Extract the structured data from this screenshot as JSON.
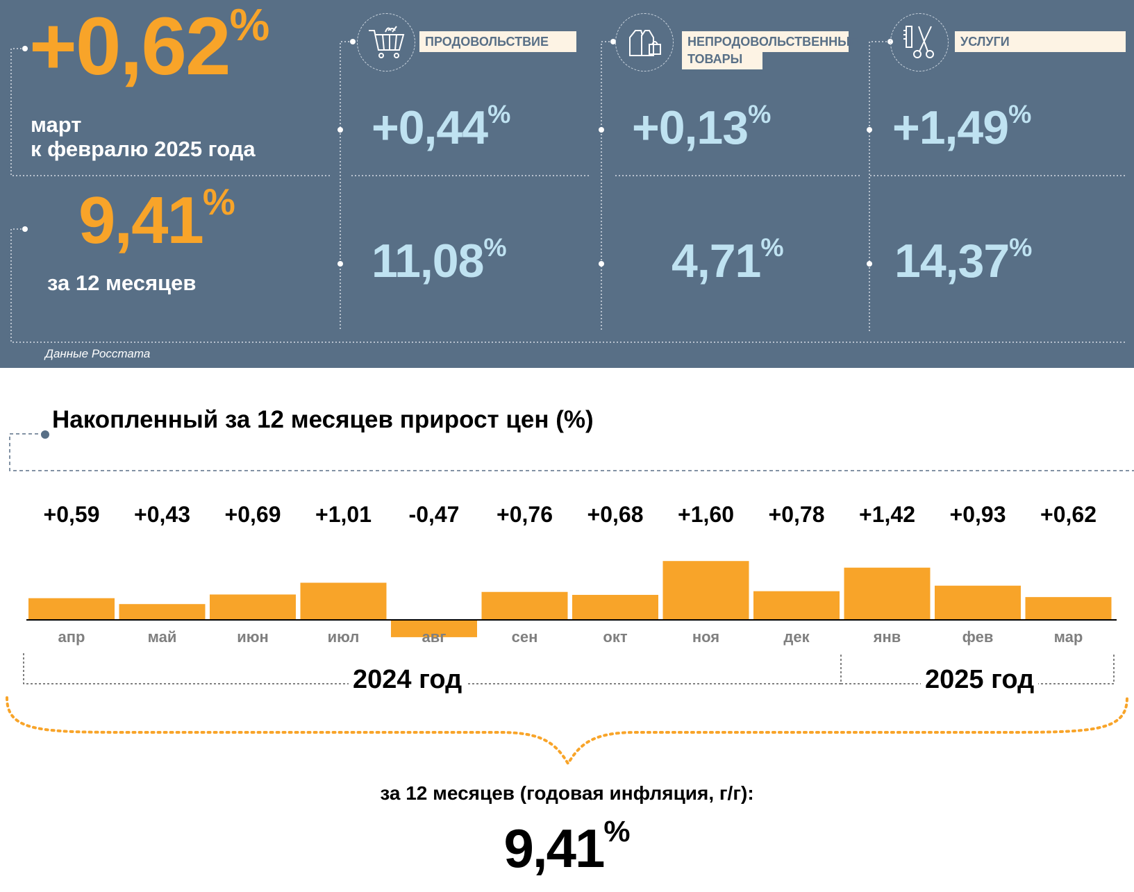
{
  "top": {
    "monthly": {
      "value": "+0,62",
      "unit": "%",
      "line1": "март",
      "line2": "к февралю 2025 года"
    },
    "annual": {
      "value": "9,41",
      "unit": "%",
      "label": "за 12 месяцев"
    },
    "source": "Данные Росстата",
    "categories": [
      {
        "label": "ПРОДОВОЛЬСТВИЕ",
        "monthly": "+0,44",
        "annual": "11,08",
        "icon": "shopping-cart-icon"
      },
      {
        "label_line1": "НЕПРОДОВОЛЬСТВЕННЫЕ",
        "label_line2": "ТОВАРЫ",
        "monthly": "+0,13",
        "annual": "4,71",
        "icon": "clothes-bag-icon"
      },
      {
        "label": "УСЛУГИ",
        "monthly": "+1,49",
        "annual": "14,37",
        "icon": "scissors-comb-icon"
      }
    ]
  },
  "chart_data": {
    "type": "bar",
    "title": "Накопленный за 12 месяцев прирост цен (%)",
    "categories": [
      "апр",
      "май",
      "июн",
      "июл",
      "авг",
      "сен",
      "окт",
      "ноя",
      "дек",
      "янв",
      "фев",
      "мар"
    ],
    "values": [
      0.59,
      0.43,
      0.69,
      1.01,
      -0.47,
      0.76,
      0.68,
      1.6,
      0.78,
      1.42,
      0.93,
      0.62
    ],
    "value_labels": [
      "+0,59",
      "+0,43",
      "+0,69",
      "+1,01",
      "-0,47",
      "+0,76",
      "+0,68",
      "+1,60",
      "+0,78",
      "+1,42",
      "+0,93",
      "+0,62"
    ],
    "groups": [
      {
        "label": "2024 год",
        "months": 9
      },
      {
        "label": "2025 год",
        "months": 3
      }
    ],
    "bar_color": "#f8a429"
  },
  "summary": {
    "caption": "за 12 месяцев (годовая инфляция, г/г):",
    "value": "9,41",
    "unit": "%"
  },
  "colors": {
    "panel": "#586f86",
    "accent": "#f8a429",
    "light_blue": "#bfe2f1",
    "label_bg": "#fdf3e4"
  }
}
